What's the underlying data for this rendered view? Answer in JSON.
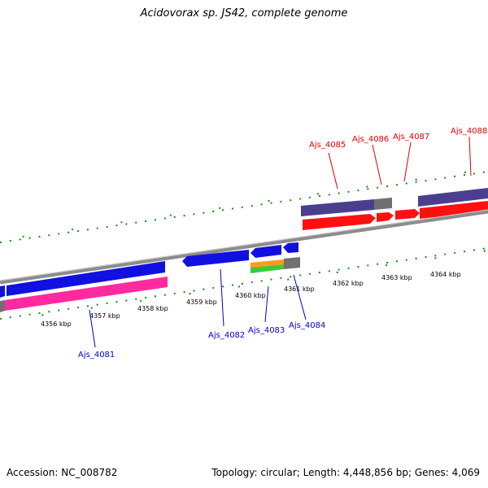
{
  "title": "Acidovorax sp. JS42, complete genome",
  "footer": {
    "accession": "Accession: NC_008782",
    "summary": "Topology: circular; Length: 4,448,856 bp; Genes: 4,069"
  },
  "scale_labels": [
    "4356 kbp",
    "4357 kbp",
    "4358 kbp",
    "4359 kbp",
    "4360 kbp",
    "4361 kbp",
    "4362 kbp",
    "4363 kbp",
    "4364 kbp"
  ],
  "genes_upper": [
    "Ajs_4085",
    "Ajs_4086",
    "Ajs_4087",
    "Ajs_4088"
  ],
  "genes_lower": [
    "Ajs_4081",
    "Ajs_4082",
    "Ajs_4083",
    "Ajs_4084"
  ],
  "colors": {
    "backbone": "#8c8c8c",
    "cds_blue": "#1010e0",
    "cds_red": "#ff1010",
    "rna_pink": "#ff2a9e",
    "gene_purple": "#4a3f8f",
    "pseudo_gray": "#707070",
    "orange": "#ff9a1a",
    "green": "#3cc83c",
    "tick_green": "#1a8a1a",
    "label_red": "#e00000",
    "label_blue": "#0000cc"
  }
}
